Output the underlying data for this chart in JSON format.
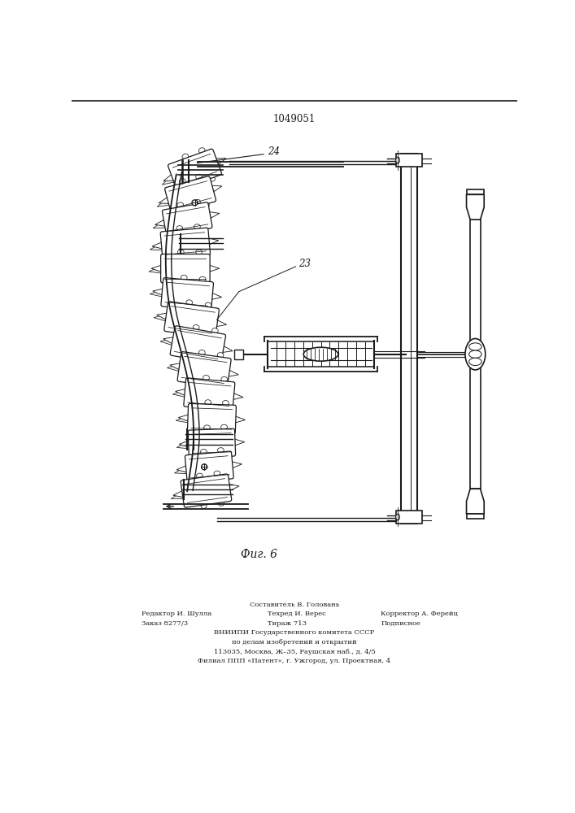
{
  "patent_number": "1049051",
  "fig_label": "Фиг. 6",
  "label_24": "24",
  "label_23": "23",
  "footer_line1": "Составитель В. Головань",
  "footer_line2_left": "Редактор И. Шулла",
  "footer_line2_mid": "Техред И. Верес",
  "footer_line2_right": "Корректор А. Ферейц",
  "footer_line3_left": "Заказ 8277/3",
  "footer_line3_mid": "Тираж 713",
  "footer_line3_right": "Подписное",
  "footer_line4": "ВНИИПИ Государственного комитета СССР",
  "footer_line5": "по делам изобретений и открытий",
  "footer_line6": "113035, Москва, Ж–35, Раушская наб., д. 4/5",
  "footer_line7": "Филиал ППП «Патент», г. Ужгород, ул. Проектная, 4",
  "lc": "#1a1a1a",
  "bg": "#ffffff"
}
